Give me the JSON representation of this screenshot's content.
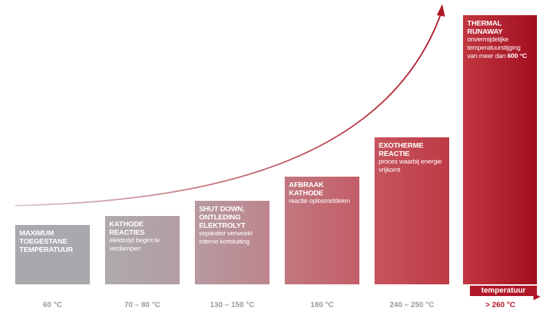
{
  "axis_label": "temperatuur",
  "stages": [
    {
      "title": [
        "MAXIMUM",
        "TOEGESTANE",
        "TEMPERATUUR"
      ],
      "temperature": "60 °C"
    },
    {
      "title": [
        "KATHODE",
        "REACTIES"
      ],
      "description": [
        "elektrolyt begint te",
        "verdampen"
      ],
      "temperature": "70 – 80 °C"
    },
    {
      "title": [
        "SHUT DOWN,",
        "ONTLEDING",
        "ELEKTROLYT"
      ],
      "description": [
        "separator verweekt",
        "interne kortsluiting"
      ],
      "temperature": "130 – 150 °C"
    },
    {
      "title": [
        "AFBRAAK",
        "KATHODE"
      ],
      "description": [
        "reactie oplosmiddelen"
      ],
      "temperature": "180 °C"
    },
    {
      "title": [
        "EXOTHERME",
        "REACTIE"
      ],
      "description": [
        "proces waarbij energie",
        "vrijkomt"
      ],
      "temperature": "240 – 250 °C"
    },
    {
      "title": [
        "THERMAL",
        "RUNAWAY"
      ],
      "description": [
        "onvermijdelijke",
        "temperatuurstijging",
        "van meer dan"
      ],
      "highlight": "600 °C",
      "temperature": "> 260 °C"
    }
  ]
}
